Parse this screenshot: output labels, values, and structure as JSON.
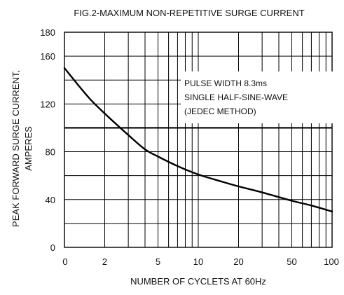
{
  "chart_data": {
    "type": "line",
    "title": "FIG.2-MAXIMUM NON-REPETITIVE  SURGE CURRENT",
    "xlabel": "NUMBER OF CYCLETS AT 60Hz",
    "ylabel_lines": [
      "PEAK FORWARD SURGE CURRENT,",
      "AMPERES"
    ],
    "x_scale": "log",
    "x_tick_labels": [
      "0",
      "2",
      "5",
      "10",
      "20",
      "50",
      "100"
    ],
    "x_tick_values": [
      1,
      2,
      5,
      10,
      20,
      50,
      100
    ],
    "x_gridlines": [
      2,
      3,
      4,
      5,
      6,
      7,
      8,
      9,
      10,
      20,
      30,
      40,
      50,
      60,
      70,
      80,
      90
    ],
    "xlim": [
      1,
      100
    ],
    "ylim": [
      0,
      180
    ],
    "y_ticks": [
      0,
      40,
      80,
      120,
      160,
      180
    ],
    "y_gridlines": [
      20,
      40,
      60,
      80,
      100,
      120,
      140,
      160
    ],
    "y_major_gridlines": [
      100
    ],
    "grid": true,
    "annotation": [
      "PULSE WIDTH 8.3ms",
      "SINGLE HALF-SINE-WAVE",
      "(JEDEC METHOD)"
    ],
    "series": [
      {
        "x": [
          1,
          1.5,
          2,
          3,
          4,
          5,
          7,
          10,
          15,
          20,
          30,
          50,
          70,
          100
        ],
        "y": [
          150,
          126,
          112,
          94,
          82,
          76,
          68,
          61,
          55,
          51,
          46,
          39,
          35,
          30
        ]
      }
    ],
    "colors": {
      "grid": "#000000",
      "curve": "#000000",
      "text": "#111111",
      "annotation_bg": "#ffffff"
    }
  }
}
